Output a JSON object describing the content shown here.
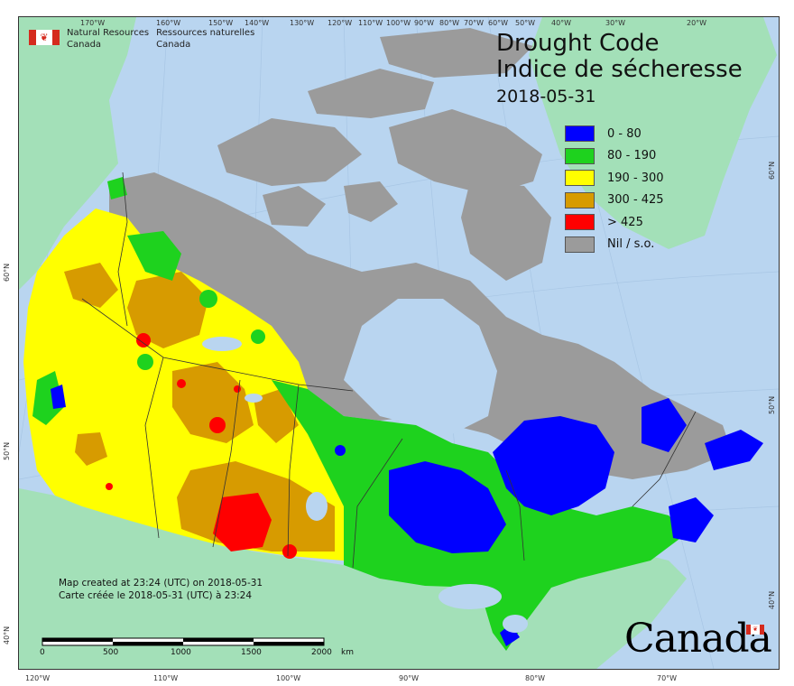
{
  "title": {
    "en": "Drought Code",
    "fr": "Indice de sécheresse",
    "date": "2018-05-31"
  },
  "agency": {
    "en": [
      "Natural Resources",
      "Canada"
    ],
    "fr": [
      "Ressources naturelles",
      "Canada"
    ]
  },
  "legend": [
    {
      "label": "0 - 80",
      "color": "#0000ff"
    },
    {
      "label": "80 - 190",
      "color": "#1ed21e"
    },
    {
      "label": "190 - 300",
      "color": "#ffff00"
    },
    {
      "label": "300 - 425",
      "color": "#d79b00"
    },
    {
      "label": "> 425",
      "color": "#ff0000"
    },
    {
      "label": "Nil / s.o.",
      "color": "#9b9b9b"
    }
  ],
  "credits": {
    "en": "Map created at 23:24 (UTC) on 2018-05-31",
    "fr": "Carte créée le 2018-05-31 (UTC) à 23:24"
  },
  "scale": {
    "labels": [
      "0",
      "500",
      "1000",
      "1500",
      "2000"
    ],
    "unit": "km"
  },
  "ticks": {
    "top": [
      "170°W",
      "160°W",
      "150°W",
      "140°W",
      "130°W",
      "120°W",
      "110°W",
      "100°W",
      "90°W",
      "80°W",
      "70°W",
      "60°W",
      "50°W",
      "40°W",
      "30°W",
      "20°W"
    ],
    "bottom": [
      "120°W",
      "110°W",
      "100°W",
      "90°W",
      "80°W",
      "70°W"
    ],
    "left": [
      "60°N",
      "50°N",
      "40°N"
    ],
    "right": [
      "60°N",
      "50°N",
      "40°N"
    ]
  },
  "wordmark": "Canada",
  "colors": {
    "ocean": "#b9d5f0",
    "non_canada_land": "#a3e0b8",
    "nil": "#9b9b9b"
  }
}
